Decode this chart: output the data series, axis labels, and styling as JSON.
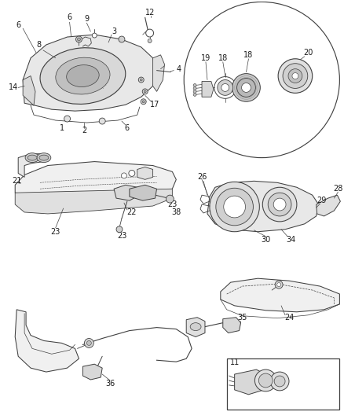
{
  "bg_color": "#ffffff",
  "line_color": "#404040",
  "label_color": "#1a1a1a",
  "fig_width": 4.38,
  "fig_height": 5.33,
  "dpi": 100,
  "lw": 0.75
}
